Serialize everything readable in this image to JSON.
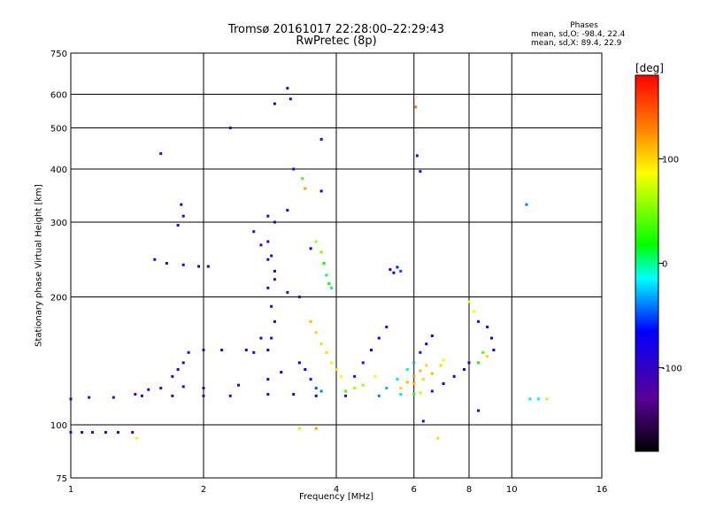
{
  "title": "Tromsø 20161017 22:28:00–22:29:43",
  "subtitle": "RwPretec (8p)",
  "phases": {
    "title": "Phases",
    "line_o": "mean, sd,O: -98.4, 22.4",
    "line_x": "mean, sd,X:  89.4, 22.9"
  },
  "colorbar": {
    "unit": "[deg]",
    "ticks": [
      {
        "value": 100,
        "label": "100"
      },
      {
        "value": 0,
        "label": "0"
      },
      {
        "value": -100,
        "label": "-100"
      }
    ],
    "range": [
      -180,
      180
    ]
  },
  "chart_data": {
    "type": "scatter",
    "title": "Tromsø 20161017 22:28:00–22:29:43",
    "subtitle": "RwPretec (8p)",
    "xlabel": "Frequency [MHz]",
    "ylabel": "Stationary phase Virtual Height [km]",
    "x_scale": "log",
    "y_scale": "log",
    "xlim": [
      1,
      16
    ],
    "ylim": [
      75,
      750
    ],
    "x_ticks": [
      {
        "value": 1,
        "label": "1"
      },
      {
        "value": 2,
        "label": "2"
      },
      {
        "value": 4,
        "label": "4"
      },
      {
        "value": 6,
        "label": "6"
      },
      {
        "value": 8,
        "label": "8"
      },
      {
        "value": 10,
        "label": "10"
      },
      {
        "value": 16,
        "label": "16"
      }
    ],
    "y_ticks": [
      {
        "value": 75,
        "label": "75"
      },
      {
        "value": 100,
        "label": "100"
      },
      {
        "value": 200,
        "label": "200"
      },
      {
        "value": 300,
        "label": "300"
      },
      {
        "value": 400,
        "label": "400"
      },
      {
        "value": 500,
        "label": "500"
      },
      {
        "value": 600,
        "label": "600"
      },
      {
        "value": 750,
        "label": "750"
      }
    ],
    "grid": true,
    "color_variable": "phase",
    "colormap": [
      "#000000",
      "#5a0096",
      "#0000ff",
      "#00ffff",
      "#00ff00",
      "#ffff00",
      "#ff8000",
      "#ff0000"
    ],
    "series": [
      {
        "points": [
          [
            1.0,
            96,
            -110
          ],
          [
            1.06,
            96,
            -110
          ],
          [
            1.12,
            96,
            -108
          ],
          [
            1.2,
            96,
            -108
          ],
          [
            1.28,
            96,
            -108
          ],
          [
            1.38,
            96,
            -106
          ],
          [
            1.41,
            93,
            80
          ]
        ]
      },
      {
        "points": [
          [
            1.0,
            115,
            -110
          ],
          [
            1.1,
            116,
            -120
          ],
          [
            1.25,
            116,
            -130
          ],
          [
            1.45,
            117,
            -140
          ],
          [
            1.7,
            117,
            -140
          ],
          [
            2.0,
            117,
            -130
          ],
          [
            2.3,
            117,
            -120
          ],
          [
            2.8,
            118,
            -100
          ],
          [
            3.2,
            118,
            -90
          ],
          [
            3.6,
            117,
            -80
          ],
          [
            4.2,
            117,
            -60
          ],
          [
            5.0,
            117,
            -40
          ],
          [
            5.6,
            118,
            -20
          ],
          [
            6.0,
            118,
            30
          ],
          [
            6.2,
            119,
            70
          ]
        ]
      },
      {
        "points": [
          [
            1.4,
            118,
            -130
          ],
          [
            1.5,
            121,
            -120
          ],
          [
            1.6,
            122,
            -110
          ],
          [
            1.8,
            123,
            -110
          ],
          [
            2.0,
            122,
            -100
          ],
          [
            2.4,
            124,
            -90
          ],
          [
            2.8,
            128,
            -80
          ],
          [
            3.0,
            133,
            -70
          ]
        ]
      },
      {
        "points": [
          [
            1.7,
            130,
            -110
          ],
          [
            1.75,
            135,
            -110
          ],
          [
            1.8,
            140,
            -110
          ],
          [
            1.85,
            148,
            -120
          ]
        ]
      },
      {
        "points": [
          [
            2.0,
            150,
            -100
          ],
          [
            2.2,
            150,
            -100
          ],
          [
            2.5,
            150,
            -100
          ],
          [
            2.6,
            148,
            -90
          ],
          [
            2.7,
            160,
            -100
          ]
        ]
      },
      {
        "points": [
          [
            2.8,
            310,
            -100
          ],
          [
            2.9,
            300,
            -100
          ],
          [
            2.8,
            270,
            -100
          ],
          [
            2.85,
            250,
            -100
          ],
          [
            2.9,
            230,
            -90
          ],
          [
            2.8,
            210,
            -100
          ],
          [
            2.85,
            190,
            -90
          ],
          [
            2.9,
            175,
            -90
          ],
          [
            2.85,
            160,
            -90
          ],
          [
            2.8,
            150,
            -90
          ]
        ]
      },
      {
        "points": [
          [
            2.6,
            285,
            -110
          ],
          [
            2.7,
            265,
            -110
          ],
          [
            2.8,
            245,
            -110
          ],
          [
            2.9,
            220,
            -120
          ],
          [
            3.1,
            205,
            -130
          ],
          [
            3.3,
            200,
            -120
          ]
        ]
      },
      {
        "points": [
          [
            1.55,
            245,
            -100
          ],
          [
            1.65,
            240,
            -110
          ],
          [
            1.8,
            238,
            -100
          ],
          [
            1.95,
            236,
            -100
          ],
          [
            2.05,
            236,
            -90
          ]
        ]
      },
      {
        "points": [
          [
            1.78,
            330,
            -100
          ],
          [
            1.8,
            310,
            -100
          ],
          [
            1.75,
            295,
            -100
          ]
        ]
      },
      {
        "points": [
          [
            3.1,
            620,
            -100
          ],
          [
            3.15,
            585,
            -110
          ],
          [
            2.9,
            570,
            -100
          ],
          [
            2.3,
            500,
            -120
          ],
          [
            1.6,
            435,
            -120
          ],
          [
            3.7,
            470,
            -60
          ]
        ]
      },
      {
        "points": [
          [
            3.2,
            400,
            -100
          ],
          [
            3.35,
            380,
            40
          ],
          [
            3.4,
            360,
            120
          ],
          [
            3.7,
            355,
            -80
          ],
          [
            3.1,
            320,
            -90
          ],
          [
            3.5,
            260,
            -80
          ]
        ]
      },
      {
        "points": [
          [
            3.6,
            270,
            60
          ],
          [
            3.7,
            255,
            50
          ],
          [
            3.75,
            240,
            20
          ],
          [
            3.8,
            225,
            10
          ],
          [
            3.85,
            215,
            20
          ],
          [
            3.9,
            210,
            0
          ]
        ]
      },
      {
        "points": [
          [
            3.5,
            175,
            110
          ],
          [
            3.6,
            165,
            100
          ],
          [
            3.7,
            155,
            100
          ],
          [
            3.8,
            148,
            100
          ],
          [
            3.9,
            140,
            90
          ],
          [
            4.0,
            135,
            100
          ],
          [
            4.1,
            130,
            90
          ]
        ]
      },
      {
        "points": [
          [
            3.3,
            140,
            -80
          ],
          [
            3.4,
            135,
            -70
          ],
          [
            3.5,
            128,
            -60
          ],
          [
            3.6,
            122,
            -50
          ],
          [
            3.7,
            120,
            -40
          ]
        ]
      },
      {
        "points": [
          [
            4.4,
            130,
            -60
          ],
          [
            4.6,
            140,
            -60
          ],
          [
            4.8,
            150,
            -70
          ],
          [
            5.0,
            160,
            -70
          ],
          [
            5.2,
            170,
            -80
          ]
        ]
      },
      {
        "points": [
          [
            4.2,
            120,
            40
          ],
          [
            4.4,
            122,
            60
          ],
          [
            4.6,
            124,
            60
          ],
          [
            4.9,
            130,
            80
          ]
        ]
      },
      {
        "points": [
          [
            5.2,
            122,
            -30
          ],
          [
            5.5,
            128,
            -20
          ],
          [
            5.8,
            135,
            -10
          ],
          [
            6.0,
            140,
            -30
          ],
          [
            6.2,
            148,
            -60
          ],
          [
            6.4,
            155,
            -80
          ],
          [
            6.6,
            162,
            -80
          ]
        ]
      },
      {
        "points": [
          [
            5.6,
            122,
            100
          ],
          [
            5.8,
            126,
            110
          ],
          [
            6.0,
            130,
            120
          ],
          [
            6.2,
            134,
            110
          ],
          [
            6.4,
            138,
            100
          ]
        ]
      },
      {
        "points": [
          [
            6.0,
            125,
            110
          ],
          [
            6.3,
            128,
            100
          ],
          [
            6.6,
            132,
            110
          ],
          [
            6.9,
            138,
            100
          ],
          [
            7.0,
            142,
            90
          ]
        ]
      },
      {
        "points": [
          [
            6.6,
            120,
            -60
          ],
          [
            7.0,
            125,
            -70
          ],
          [
            7.4,
            130,
            -80
          ],
          [
            7.8,
            135,
            -90
          ],
          [
            8.0,
            140,
            -90
          ]
        ]
      },
      {
        "points": [
          [
            5.3,
            232,
            -80
          ],
          [
            5.5,
            235,
            -60
          ],
          [
            5.6,
            230,
            -50
          ],
          [
            5.4,
            228,
            -70
          ]
        ]
      },
      {
        "points": [
          [
            6.1,
            430,
            -100
          ],
          [
            6.2,
            395,
            -100
          ],
          [
            6.05,
            560,
            140
          ]
        ]
      },
      {
        "points": [
          [
            8.0,
            195,
            90
          ],
          [
            8.2,
            185,
            80
          ],
          [
            8.4,
            175,
            -60
          ],
          [
            8.8,
            170,
            -70
          ],
          [
            9.0,
            160,
            -70
          ],
          [
            9.1,
            150,
            -80
          ]
        ]
      },
      {
        "points": [
          [
            8.4,
            140,
            20
          ],
          [
            8.6,
            148,
            40
          ],
          [
            8.8,
            145,
            100
          ]
        ]
      },
      {
        "points": [
          [
            11.0,
            115,
            -20
          ],
          [
            11.5,
            115,
            -10
          ],
          [
            12.0,
            115,
            70
          ],
          [
            10.8,
            330,
            -40
          ]
        ]
      },
      {
        "points": [
          [
            6.3,
            102,
            -90
          ],
          [
            6.8,
            93,
            100
          ],
          [
            8.4,
            108,
            -80
          ],
          [
            3.3,
            98,
            70
          ],
          [
            3.6,
            98,
            120
          ]
        ]
      }
    ]
  }
}
